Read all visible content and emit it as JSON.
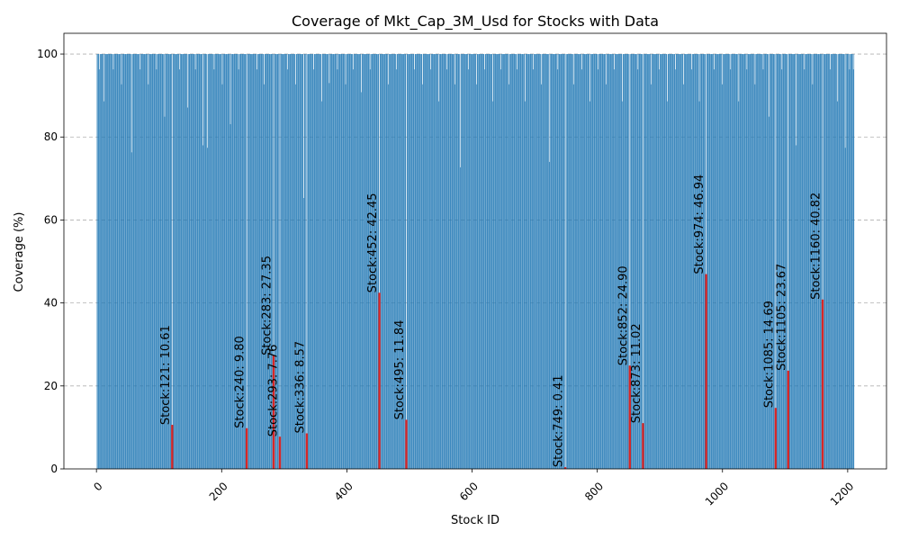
{
  "chart_data": {
    "type": "bar",
    "title": "Coverage of Mkt_Cap_3M_Usd for Stocks with Data",
    "xlabel": "Stock ID",
    "ylabel": "Coverage (%)",
    "xlim": [
      -52,
      1262
    ],
    "ylim": [
      0,
      105
    ],
    "xticks": [
      0,
      200,
      400,
      600,
      800,
      1000,
      1200
    ],
    "yticks": [
      0,
      20,
      40,
      60,
      80,
      100
    ],
    "grid": "y-dashed",
    "bar_color": "#1f77b4",
    "highlight_color": "#d62728",
    "stock_id_range": [
      1,
      1210
    ],
    "default_coverage": 100,
    "low_coverage_stocks": [
      {
        "x": 121,
        "value": 10.61,
        "label": "Stock:121: 10.61"
      },
      {
        "x": 240,
        "value": 9.8,
        "label": "Stock:240: 9.80"
      },
      {
        "x": 283,
        "value": 27.35,
        "label": "Stock:283: 27.35"
      },
      {
        "x": 293,
        "value": 7.76,
        "label": "Stock:293: 7.76"
      },
      {
        "x": 336,
        "value": 8.57,
        "label": "Stock:336: 8.57"
      },
      {
        "x": 452,
        "value": 42.45,
        "label": "Stock:452: 42.45"
      },
      {
        "x": 495,
        "value": 11.84,
        "label": "Stock:495: 11.84"
      },
      {
        "x": 749,
        "value": 0.41,
        "label": "Stock:749: 0.41"
      },
      {
        "x": 852,
        "value": 24.9,
        "label": "Stock:852: 24.90"
      },
      {
        "x": 873,
        "value": 11.02,
        "label": "Stock:873: 11.02"
      },
      {
        "x": 974,
        "value": 46.94,
        "label": "Stock:974: 46.94"
      },
      {
        "x": 1085,
        "value": 14.69,
        "label": "Stock:1085: 14.69"
      },
      {
        "x": 1105,
        "value": 23.67,
        "label": "Stock:1105: 23.67"
      },
      {
        "x": 1160,
        "value": 40.82,
        "label": "Stock:1160: 40.82"
      }
    ],
    "approx_coverage_dips": [
      {
        "x": 5,
        "value": 96.3
      },
      {
        "x": 12,
        "value": 88.6
      },
      {
        "x": 27,
        "value": 96.3
      },
      {
        "x": 40,
        "value": 92.7
      },
      {
        "x": 56,
        "value": 76.3
      },
      {
        "x": 70,
        "value": 96.3
      },
      {
        "x": 83,
        "value": 92.7
      },
      {
        "x": 96,
        "value": 96.3
      },
      {
        "x": 109,
        "value": 84.9
      },
      {
        "x": 133,
        "value": 96.3
      },
      {
        "x": 146,
        "value": 87.1
      },
      {
        "x": 158,
        "value": 96.3
      },
      {
        "x": 170,
        "value": 78.0
      },
      {
        "x": 177,
        "value": 77.4
      },
      {
        "x": 188,
        "value": 96.3
      },
      {
        "x": 201,
        "value": 92.7
      },
      {
        "x": 214,
        "value": 83.1
      },
      {
        "x": 227,
        "value": 96.3
      },
      {
        "x": 256,
        "value": 96.3
      },
      {
        "x": 268,
        "value": 92.7
      },
      {
        "x": 305,
        "value": 96.3
      },
      {
        "x": 318,
        "value": 92.7
      },
      {
        "x": 331,
        "value": 65.3
      },
      {
        "x": 347,
        "value": 96.3
      },
      {
        "x": 360,
        "value": 88.6
      },
      {
        "x": 372,
        "value": 93.0
      },
      {
        "x": 385,
        "value": 96.3
      },
      {
        "x": 398,
        "value": 92.7
      },
      {
        "x": 410,
        "value": 96.3
      },
      {
        "x": 423,
        "value": 90.8
      },
      {
        "x": 437,
        "value": 96.3
      },
      {
        "x": 466,
        "value": 92.7
      },
      {
        "x": 479,
        "value": 96.3
      },
      {
        "x": 508,
        "value": 96.3
      },
      {
        "x": 521,
        "value": 92.7
      },
      {
        "x": 534,
        "value": 96.3
      },
      {
        "x": 547,
        "value": 88.6
      },
      {
        "x": 560,
        "value": 96.3
      },
      {
        "x": 573,
        "value": 92.7
      },
      {
        "x": 581,
        "value": 72.7
      },
      {
        "x": 594,
        "value": 96.3
      },
      {
        "x": 607,
        "value": 92.7
      },
      {
        "x": 620,
        "value": 96.3
      },
      {
        "x": 633,
        "value": 88.6
      },
      {
        "x": 646,
        "value": 96.3
      },
      {
        "x": 659,
        "value": 92.7
      },
      {
        "x": 672,
        "value": 96.3
      },
      {
        "x": 685,
        "value": 88.6
      },
      {
        "x": 698,
        "value": 96.3
      },
      {
        "x": 711,
        "value": 92.7
      },
      {
        "x": 724,
        "value": 74.0
      },
      {
        "x": 737,
        "value": 96.3
      },
      {
        "x": 762,
        "value": 92.7
      },
      {
        "x": 775,
        "value": 96.3
      },
      {
        "x": 788,
        "value": 88.6
      },
      {
        "x": 801,
        "value": 96.3
      },
      {
        "x": 814,
        "value": 92.7
      },
      {
        "x": 827,
        "value": 96.3
      },
      {
        "x": 840,
        "value": 88.6
      },
      {
        "x": 865,
        "value": 96.3
      },
      {
        "x": 886,
        "value": 92.7
      },
      {
        "x": 899,
        "value": 96.3
      },
      {
        "x": 912,
        "value": 88.6
      },
      {
        "x": 925,
        "value": 96.3
      },
      {
        "x": 938,
        "value": 92.7
      },
      {
        "x": 951,
        "value": 96.3
      },
      {
        "x": 963,
        "value": 88.6
      },
      {
        "x": 987,
        "value": 96.3
      },
      {
        "x": 1000,
        "value": 92.7
      },
      {
        "x": 1013,
        "value": 96.3
      },
      {
        "x": 1026,
        "value": 88.6
      },
      {
        "x": 1039,
        "value": 96.3
      },
      {
        "x": 1052,
        "value": 92.7
      },
      {
        "x": 1065,
        "value": 96.3
      },
      {
        "x": 1074,
        "value": 84.9
      },
      {
        "x": 1095,
        "value": 96.3
      },
      {
        "x": 1118,
        "value": 78.0
      },
      {
        "x": 1131,
        "value": 96.3
      },
      {
        "x": 1144,
        "value": 92.7
      },
      {
        "x": 1172,
        "value": 96.3
      },
      {
        "x": 1184,
        "value": 88.6
      },
      {
        "x": 1196,
        "value": 77.4
      },
      {
        "x": 1203,
        "value": 96.3
      },
      {
        "x": 1209,
        "value": 96.3
      }
    ]
  }
}
